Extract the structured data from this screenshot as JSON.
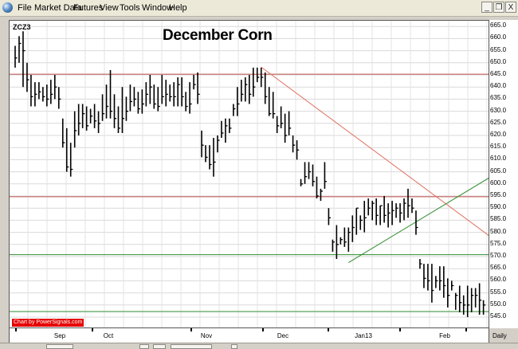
{
  "menu": {
    "items": [
      "File",
      "Market Data",
      "Futures",
      "View",
      "Tools",
      "Window",
      "Help"
    ]
  },
  "window_controls": {
    "minimize": "_",
    "restore": "❐",
    "close": "X"
  },
  "symbol": "ZCZ3",
  "credit": "Chart by PowerSignals.com",
  "interval": "Daily",
  "chart_data": {
    "type": "ohlc",
    "title": "December Corn",
    "xlabel": "",
    "ylabel": "",
    "ylim": [
      542,
      668
    ],
    "yticks": [
      "545.0",
      "550.0",
      "555.0",
      "560.0",
      "565.0",
      "570.0",
      "575.0",
      "580.0",
      "585.0",
      "590.0",
      "595.0",
      "600.0",
      "605.0",
      "610.0",
      "615.0",
      "620.0",
      "625.0",
      "630.0",
      "635.0",
      "640.0",
      "645.0",
      "650.0",
      "655.0",
      "660.0",
      "665.0"
    ],
    "xticks": [
      "Sep",
      "Oct",
      "Nov",
      "Dec",
      "Jan13",
      "Feb"
    ],
    "grid": true,
    "series": [
      {
        "bars": [
          [
            652,
            648,
            657
          ],
          [
            658,
            650,
            661
          ],
          [
            655,
            640,
            663
          ],
          [
            643,
            638,
            650
          ],
          [
            636,
            632,
            645
          ],
          [
            637,
            632,
            642
          ],
          [
            638,
            635,
            642
          ],
          [
            636,
            634,
            640
          ],
          [
            635,
            632,
            641
          ],
          [
            637,
            633,
            643
          ],
          [
            640,
            635,
            645
          ],
          [
            635,
            631,
            640
          ],
          [
            617,
            615,
            627
          ],
          [
            607,
            605,
            623
          ],
          [
            606,
            603,
            617
          ],
          [
            622,
            615,
            630
          ],
          [
            625,
            620,
            633
          ],
          [
            629,
            623,
            633
          ],
          [
            624,
            622,
            632
          ],
          [
            628,
            625,
            631
          ],
          [
            626,
            623,
            633
          ],
          [
            625,
            621,
            630
          ],
          [
            629,
            626,
            637
          ],
          [
            632,
            627,
            641
          ],
          [
            630,
            627,
            647
          ],
          [
            627,
            623,
            637
          ],
          [
            623,
            621,
            632
          ],
          [
            627,
            621,
            640
          ],
          [
            630,
            626,
            636
          ],
          [
            634,
            630,
            641
          ],
          [
            635,
            632,
            640
          ],
          [
            631,
            629,
            638
          ],
          [
            633,
            629,
            639
          ],
          [
            637,
            632,
            642
          ],
          [
            640,
            633,
            645
          ],
          [
            633,
            631,
            641
          ],
          [
            632,
            630,
            640
          ],
          [
            636,
            633,
            645
          ],
          [
            637,
            632,
            643
          ],
          [
            636,
            634,
            641
          ],
          [
            636,
            632,
            642
          ],
          [
            641,
            632,
            644
          ],
          [
            636,
            632,
            644
          ],
          [
            632,
            630,
            638
          ],
          [
            633,
            629,
            642
          ],
          [
            641,
            639,
            645
          ],
          [
            637,
            633,
            646
          ],
          [
            616,
            611,
            622
          ],
          [
            611,
            609,
            616
          ],
          [
            608,
            606,
            616
          ],
          [
            609,
            603,
            619
          ],
          [
            618,
            613,
            620
          ],
          [
            621,
            619,
            626
          ],
          [
            624,
            617,
            627
          ],
          [
            623,
            621,
            627
          ],
          [
            631,
            628,
            633
          ],
          [
            633,
            628,
            640
          ],
          [
            637,
            634,
            643
          ],
          [
            641,
            634,
            644
          ],
          [
            637,
            633,
            645
          ],
          [
            640,
            636,
            648
          ],
          [
            644,
            642,
            648
          ],
          [
            644,
            640,
            648
          ],
          [
            636,
            633,
            646
          ],
          [
            629,
            628,
            640
          ],
          [
            629,
            627,
            638
          ],
          [
            624,
            621,
            628
          ],
          [
            625,
            623,
            632
          ],
          [
            620,
            617,
            629
          ],
          [
            623,
            620,
            630
          ],
          [
            616,
            613,
            620
          ],
          [
            614,
            610,
            618
          ],
          [
            600,
            599,
            602
          ],
          [
            603,
            600,
            609
          ],
          [
            605,
            602,
            609
          ],
          [
            601,
            599,
            608
          ],
          [
            595,
            594,
            603
          ],
          [
            597,
            593,
            598
          ],
          [
            601,
            598,
            609
          ],
          [
            586,
            583,
            590
          ],
          [
            576,
            572,
            577
          ],
          [
            575,
            569,
            583
          ],
          [
            577,
            575,
            578
          ],
          [
            576,
            574,
            582
          ],
          [
            580,
            572,
            582
          ],
          [
            582,
            576,
            587
          ],
          [
            590,
            579,
            590
          ],
          [
            585,
            581,
            587
          ],
          [
            586,
            580,
            593
          ],
          [
            590,
            587,
            594
          ],
          [
            592,
            585,
            593
          ],
          [
            587,
            583,
            594
          ],
          [
            591,
            583,
            591
          ],
          [
            587,
            584,
            595
          ],
          [
            588,
            582,
            592
          ],
          [
            589,
            583,
            593
          ],
          [
            590,
            586,
            592
          ],
          [
            588,
            584,
            592
          ],
          [
            592,
            585,
            594
          ],
          [
            591,
            586,
            598
          ],
          [
            590,
            588,
            594
          ],
          [
            582,
            579,
            589
          ],
          [
            567,
            565,
            569
          ],
          [
            561,
            557,
            567
          ],
          [
            560,
            556,
            567
          ],
          [
            556,
            551,
            567
          ],
          [
            560,
            557,
            562
          ],
          [
            560,
            556,
            566
          ],
          [
            558,
            553,
            566
          ],
          [
            554,
            549,
            561
          ],
          [
            558,
            556,
            560
          ],
          [
            554,
            548,
            555
          ],
          [
            551,
            547,
            558
          ],
          [
            550,
            546,
            554
          ],
          [
            550,
            545,
            558
          ],
          [
            554,
            547,
            557
          ],
          [
            554,
            549,
            557
          ],
          [
            552,
            546,
            559
          ],
          [
            550,
            546,
            552
          ]
        ],
        "hlines": [
          {
            "y": 645.3,
            "color": "#c0504d"
          },
          {
            "y": 594.7,
            "color": "#c0504d"
          },
          {
            "y": 570.8,
            "color": "#2e8b2e"
          },
          {
            "y": 547.3,
            "color": "#2e8b2e"
          }
        ],
        "trendlines": [
          {
            "from": [
              62,
              648.2
            ],
            "to": [
              127,
              569.4
            ],
            "color": "#e07060"
          },
          {
            "from": [
              84,
              567.5
            ],
            "to": [
              127,
              610.0
            ],
            "color": "#2e8b2e"
          }
        ]
      }
    ]
  }
}
